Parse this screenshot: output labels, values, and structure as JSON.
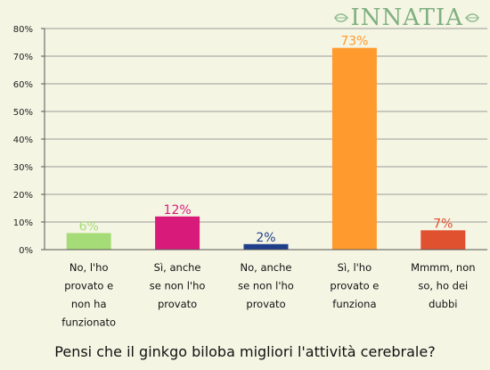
{
  "brand": {
    "logo_text": "INNATIA"
  },
  "question": "Pensi che il ginkgo biloba migliori l'attività cerebrale?",
  "chart_data": {
    "type": "bar",
    "title": "",
    "xlabel": "",
    "ylabel": "",
    "ylim": [
      0,
      80
    ],
    "yticks": [
      "0%",
      "10%",
      "20%",
      "30%",
      "40%",
      "50%",
      "60%",
      "70%",
      "80%"
    ],
    "grid": true,
    "categories": [
      [
        "No, l'ho",
        "provato e",
        "non ha",
        "funzionato"
      ],
      [
        "Sì, anche",
        "se non l'ho",
        "provato"
      ],
      [
        "No, anche",
        "se non l'ho",
        "provato"
      ],
      [
        "Sì, l'ho",
        "provato e",
        "funziona"
      ],
      [
        "Mmmm, non",
        "so, ho dei",
        "dubbi"
      ]
    ],
    "values": [
      6,
      12,
      2,
      73,
      7
    ],
    "value_labels": [
      "6%",
      "12%",
      "2%",
      "73%",
      "7%"
    ],
    "colors": [
      "#a6dc78",
      "#d81b7a",
      "#1f3f8a",
      "#ff9a2e",
      "#e0512f"
    ]
  }
}
